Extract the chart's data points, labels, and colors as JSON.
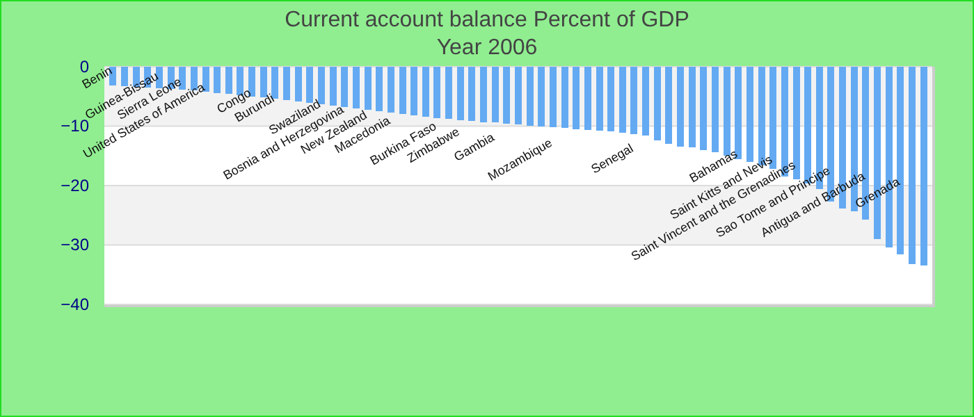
{
  "chart_data": {
    "type": "bar",
    "title": "Current account balance  Percent of GDP",
    "subtitle": "Year 2006",
    "categories": [
      "Benin",
      null,
      null,
      null,
      "Guinea-Bissau",
      null,
      "Sierra Leone",
      null,
      "United States of America",
      null,
      null,
      null,
      "Congo",
      null,
      "Burundi",
      null,
      null,
      null,
      "Swaziland",
      null,
      "Bosnia and Herzegovina",
      null,
      "New Zealand",
      null,
      "Macedonia",
      null,
      null,
      null,
      "Burkina Faso",
      null,
      "Zimbabwe",
      null,
      null,
      "Gambia",
      null,
      null,
      null,
      null,
      "Mozambique",
      null,
      null,
      null,
      null,
      null,
      null,
      "Senegal",
      null,
      null,
      null,
      null,
      null,
      null,
      null,
      null,
      "Bahamas",
      null,
      null,
      "Saint Kitts and Nevis",
      null,
      "Saint Vincent and the Grenadines",
      null,
      null,
      "Sao Tome and Principe",
      null,
      null,
      "Antigua and Barbuda",
      null,
      null,
      "Grenada",
      null,
      null
    ],
    "values": [
      -3.2,
      -3.3,
      -3.4,
      -3.5,
      -3.6,
      -3.8,
      -3.9,
      -4.0,
      -4.2,
      -4.4,
      -4.6,
      -4.8,
      -5.0,
      -5.2,
      -5.4,
      -5.6,
      -5.9,
      -6.1,
      -6.3,
      -6.6,
      -6.8,
      -7.0,
      -7.3,
      -7.5,
      -7.7,
      -7.9,
      -8.2,
      -8.4,
      -8.6,
      -8.8,
      -9.0,
      -9.1,
      -9.3,
      -9.4,
      -9.6,
      -9.7,
      -9.9,
      -10.0,
      -10.2,
      -10.3,
      -10.5,
      -10.6,
      -10.8,
      -10.9,
      -11.1,
      -11.3,
      -11.6,
      -12.4,
      -13.0,
      -13.4,
      -13.6,
      -14.0,
      -14.4,
      -15.0,
      -15.5,
      -16.0,
      -16.6,
      -17.2,
      -18.5,
      -19.0,
      -19.7,
      -20.6,
      -22.7,
      -23.9,
      -24.3,
      -25.7,
      -29.0,
      -30.4,
      -31.6,
      -33.2,
      -33.4
    ],
    "color": "#64aaf2",
    "ylim": [
      -40,
      0
    ],
    "yticks": [
      -40,
      -30,
      -20,
      -10,
      0
    ],
    "grid": true
  }
}
